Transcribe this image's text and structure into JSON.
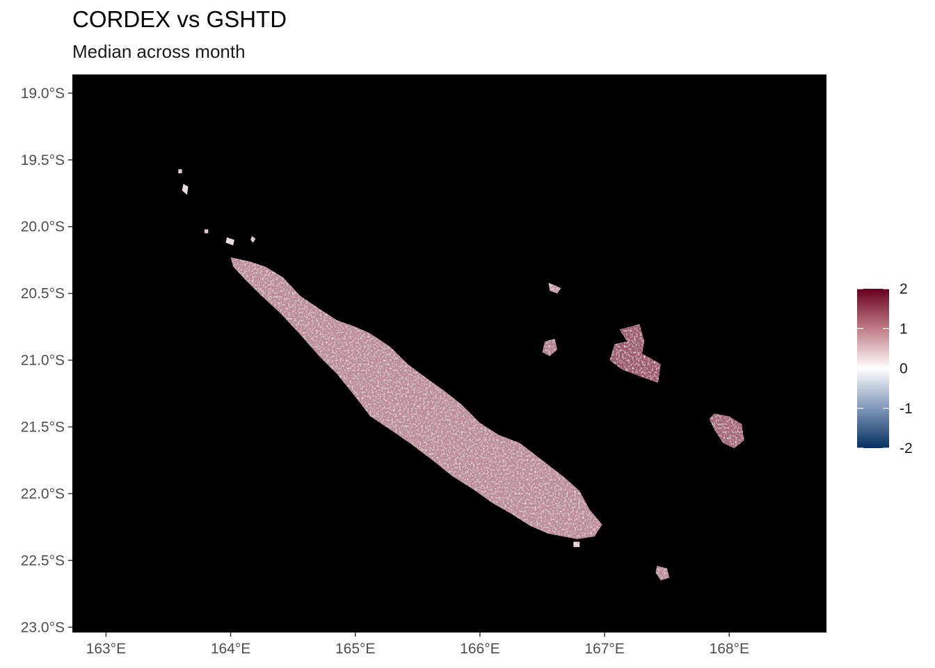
{
  "header": {
    "title": "CORDEX vs GSHTD",
    "subtitle": "Median across month"
  },
  "map": {
    "background_color": "#000000",
    "lon_range": [
      162.73,
      168.78
    ],
    "lat_range": [
      -23.04,
      -18.86
    ],
    "x_ticks": [
      {
        "value": 163,
        "label": "163°E"
      },
      {
        "value": 164,
        "label": "164°E"
      },
      {
        "value": 165,
        "label": "165°E"
      },
      {
        "value": 166,
        "label": "166°E"
      },
      {
        "value": 167,
        "label": "167°E"
      },
      {
        "value": 168,
        "label": "168°E"
      }
    ],
    "y_ticks": [
      {
        "value": -19.0,
        "label": "19.0°S"
      },
      {
        "value": -19.5,
        "label": "19.5°S"
      },
      {
        "value": -20.0,
        "label": "20.0°S"
      },
      {
        "value": -20.5,
        "label": "20.5°S"
      },
      {
        "value": -21.0,
        "label": "21.0°S"
      },
      {
        "value": -21.5,
        "label": "21.5°S"
      },
      {
        "value": -22.0,
        "label": "22.0°S"
      },
      {
        "value": -22.5,
        "label": "22.5°S"
      },
      {
        "value": -23.0,
        "label": "23.0°S"
      }
    ],
    "islands": [
      {
        "name": "grande-terre",
        "mean_value": 0.9,
        "outline": [
          [
            164.0,
            -20.23
          ],
          [
            164.15,
            -20.26
          ],
          [
            164.28,
            -20.3
          ],
          [
            164.42,
            -20.38
          ],
          [
            164.56,
            -20.52
          ],
          [
            164.72,
            -20.62
          ],
          [
            164.85,
            -20.7
          ],
          [
            165.0,
            -20.75
          ],
          [
            165.12,
            -20.8
          ],
          [
            165.28,
            -20.9
          ],
          [
            165.42,
            -21.03
          ],
          [
            165.55,
            -21.12
          ],
          [
            165.7,
            -21.22
          ],
          [
            165.85,
            -21.33
          ],
          [
            166.0,
            -21.47
          ],
          [
            166.15,
            -21.56
          ],
          [
            166.32,
            -21.62
          ],
          [
            166.5,
            -21.75
          ],
          [
            166.68,
            -21.88
          ],
          [
            166.8,
            -21.98
          ],
          [
            166.88,
            -22.12
          ],
          [
            166.98,
            -22.23
          ],
          [
            166.92,
            -22.32
          ],
          [
            166.78,
            -22.34
          ],
          [
            166.55,
            -22.3
          ],
          [
            166.4,
            -22.24
          ],
          [
            166.25,
            -22.15
          ],
          [
            166.1,
            -22.07
          ],
          [
            165.95,
            -21.97
          ],
          [
            165.78,
            -21.87
          ],
          [
            165.62,
            -21.75
          ],
          [
            165.45,
            -21.63
          ],
          [
            165.28,
            -21.52
          ],
          [
            165.12,
            -21.42
          ],
          [
            164.98,
            -21.25
          ],
          [
            164.85,
            -21.1
          ],
          [
            164.72,
            -20.98
          ],
          [
            164.55,
            -20.8
          ],
          [
            164.4,
            -20.65
          ],
          [
            164.25,
            -20.52
          ],
          [
            164.12,
            -20.4
          ],
          [
            164.02,
            -20.3
          ]
        ]
      },
      {
        "name": "lifou",
        "mean_value": 1.3,
        "outline": [
          [
            167.12,
            -20.77
          ],
          [
            167.28,
            -20.73
          ],
          [
            167.32,
            -20.86
          ],
          [
            167.3,
            -20.95
          ],
          [
            167.45,
            -21.03
          ],
          [
            167.43,
            -21.17
          ],
          [
            167.28,
            -21.12
          ],
          [
            167.14,
            -21.07
          ],
          [
            167.04,
            -21.0
          ],
          [
            167.08,
            -20.88
          ],
          [
            167.18,
            -20.86
          ]
        ]
      },
      {
        "name": "mare",
        "mean_value": 1.2,
        "outline": [
          [
            167.88,
            -21.4
          ],
          [
            168.0,
            -21.42
          ],
          [
            168.1,
            -21.48
          ],
          [
            168.12,
            -21.6
          ],
          [
            168.04,
            -21.66
          ],
          [
            167.95,
            -21.62
          ],
          [
            167.88,
            -21.52
          ],
          [
            167.84,
            -21.44
          ]
        ]
      },
      {
        "name": "tiga",
        "mean_value": 1.0,
        "outline": [
          [
            166.52,
            -20.86
          ],
          [
            166.6,
            -20.84
          ],
          [
            166.62,
            -20.92
          ],
          [
            166.56,
            -20.97
          ],
          [
            166.5,
            -20.94
          ]
        ]
      },
      {
        "name": "ouvea-north",
        "mean_value": 0.8,
        "outline": [
          [
            166.55,
            -20.42
          ],
          [
            166.65,
            -20.46
          ],
          [
            166.62,
            -20.5
          ],
          [
            166.56,
            -20.48
          ]
        ]
      },
      {
        "name": "isle-of-pines",
        "mean_value": 0.9,
        "outline": [
          [
            167.42,
            -22.54
          ],
          [
            167.5,
            -22.56
          ],
          [
            167.52,
            -22.63
          ],
          [
            167.45,
            -22.65
          ],
          [
            167.41,
            -22.59
          ]
        ]
      },
      {
        "name": "belep-1",
        "mean_value": 0.3,
        "outline": [
          [
            163.62,
            -19.68
          ],
          [
            163.66,
            -19.7
          ],
          [
            163.65,
            -19.76
          ],
          [
            163.61,
            -19.73
          ]
        ]
      },
      {
        "name": "belep-2",
        "mean_value": 0.3,
        "outline": [
          [
            163.97,
            -20.08
          ],
          [
            164.03,
            -20.1
          ],
          [
            164.02,
            -20.14
          ],
          [
            163.96,
            -20.12
          ]
        ]
      },
      {
        "name": "islet-1",
        "mean_value": 0.5,
        "outline": [
          [
            163.58,
            -19.57
          ],
          [
            163.61,
            -19.57
          ],
          [
            163.61,
            -19.6
          ],
          [
            163.58,
            -19.6
          ]
        ]
      },
      {
        "name": "islet-2",
        "mean_value": 0.5,
        "outline": [
          [
            163.79,
            -20.02
          ],
          [
            163.82,
            -20.02
          ],
          [
            163.82,
            -20.05
          ],
          [
            163.79,
            -20.05
          ]
        ]
      },
      {
        "name": "islet-3",
        "mean_value": 0.5,
        "outline": [
          [
            164.17,
            -20.07
          ],
          [
            164.2,
            -20.09
          ],
          [
            164.18,
            -20.12
          ],
          [
            164.16,
            -20.1
          ]
        ]
      },
      {
        "name": "islet-4",
        "mean_value": 0.4,
        "outline": [
          [
            166.75,
            -22.36
          ],
          [
            166.8,
            -22.36
          ],
          [
            166.8,
            -22.4
          ],
          [
            166.75,
            -22.4
          ]
        ]
      }
    ]
  },
  "legend": {
    "min": -2,
    "max": 2,
    "ticks": [
      {
        "value": 2,
        "label": "2"
      },
      {
        "value": 1,
        "label": "1"
      },
      {
        "value": 0,
        "label": "0"
      },
      {
        "value": -1,
        "label": "-1"
      },
      {
        "value": -2,
        "label": "-2"
      }
    ],
    "colors": {
      "high": "#67001f",
      "mid": "#ffffff",
      "low": "#053061"
    }
  }
}
